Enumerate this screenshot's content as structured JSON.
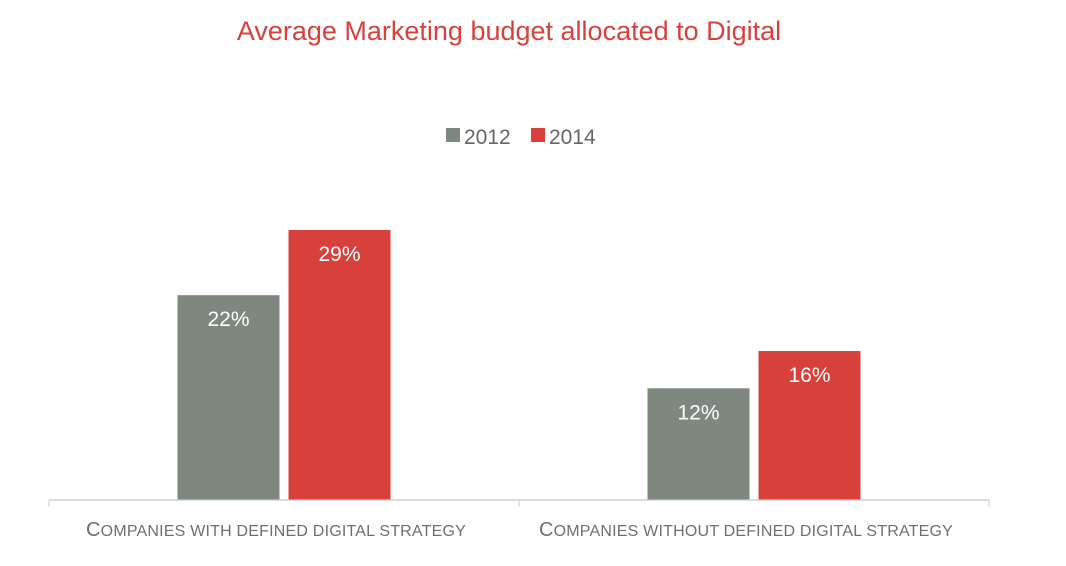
{
  "chart_data": {
    "type": "bar",
    "title": "Average Marketing budget allocated to Digital",
    "categories": [
      "Companies with defined digital strategy",
      "Companies without defined digital strategy"
    ],
    "series": [
      {
        "name": "2012",
        "values": [
          22,
          12
        ],
        "labels": [
          "22%",
          "12%"
        ]
      },
      {
        "name": "2014",
        "values": [
          29,
          16
        ],
        "labels": [
          "29%",
          "16%"
        ]
      }
    ],
    "ylim": [
      0,
      29
    ],
    "grid": false,
    "legend_position": "top-center",
    "colors": {
      "2012": "#7f887f",
      "2014": "#d8403c",
      "title": "#d8403c",
      "category_text": "#6f6f6f",
      "legend_text": "#666666",
      "axis": "#c8c8c8",
      "bar_label": "#ffffff"
    }
  }
}
